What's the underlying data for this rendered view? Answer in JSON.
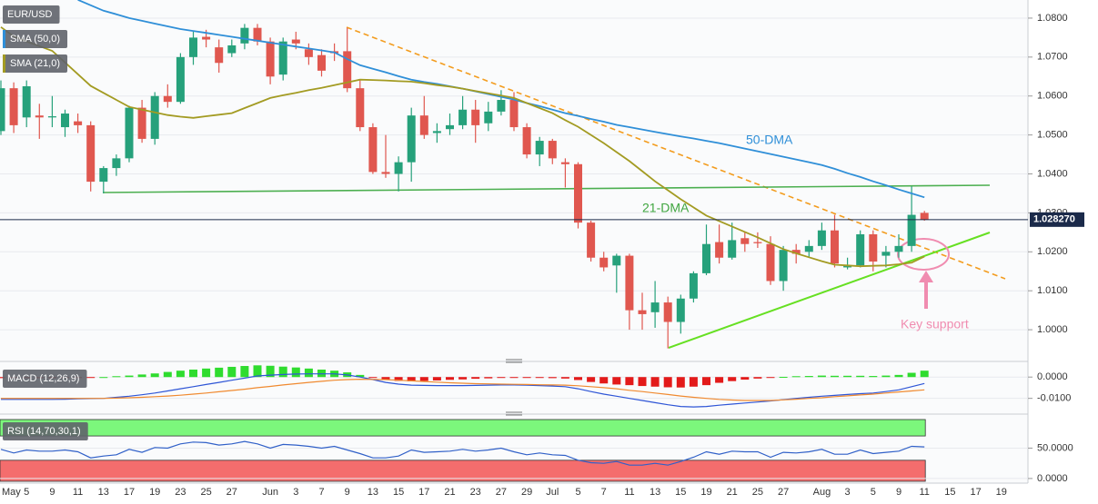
{
  "chart_data": [
    {
      "type": "candlestick",
      "title": "EUR/USD",
      "categories": [
        "May",
        null,
        "5",
        null,
        "9",
        null,
        "11",
        null,
        "13",
        null,
        "17",
        null,
        "19",
        null,
        "23",
        null,
        "25",
        null,
        "27",
        null,
        null,
        "Jun",
        null,
        "3",
        null,
        "7",
        null,
        "9",
        null,
        "13",
        null,
        "15",
        null,
        "17",
        null,
        "21",
        null,
        "23",
        null,
        "27",
        null,
        "29",
        null,
        "Jul",
        null,
        "5",
        null,
        "7",
        null,
        "11",
        null,
        "13",
        null,
        "15",
        null,
        "19",
        null,
        "21",
        null,
        "25",
        null,
        "27",
        null,
        null,
        "Aug",
        null,
        "3",
        null,
        "5",
        null,
        "9",
        null,
        "11",
        null,
        "15",
        null,
        "17",
        null,
        "19"
      ],
      "open": [
        1.051,
        1.062,
        1.0545,
        1.055,
        1.0545,
        1.052,
        1.0535,
        1.0525,
        1.038,
        1.0415,
        1.044,
        1.057,
        1.049,
        1.06,
        1.0585,
        1.07,
        1.0752,
        1.0725,
        1.071,
        1.0735,
        1.0775,
        1.074,
        1.0655,
        1.0745,
        1.072,
        1.0705,
        1.0715,
        1.0715,
        1.062,
        1.052,
        1.0405,
        1.04,
        1.043,
        1.055,
        1.0505,
        1.0515,
        1.0525,
        1.0565,
        1.053,
        1.056,
        1.059,
        1.052,
        1.045,
        1.0485,
        1.043,
        1.0425,
        1.0275,
        1.0185,
        1.0165,
        1.019,
        1.005,
        1.0045,
        1.007,
        1.002,
        1.008,
        1.0145,
        1.0225,
        1.0185,
        1.0235,
        1.0225,
        1.022,
        1.0125,
        1.0205,
        1.02,
        1.0215,
        1.0255,
        1.016,
        1.0165,
        1.0245,
        1.019,
        1.02,
        1.0215,
        1.03,
        null,
        null,
        null,
        null,
        null,
        null
      ],
      "high": [
        1.064,
        1.0635,
        1.064,
        1.058,
        1.06,
        1.0565,
        1.0555,
        1.0535,
        1.042,
        1.045,
        1.0575,
        1.059,
        1.061,
        1.063,
        1.071,
        1.0765,
        1.077,
        1.0745,
        1.0745,
        1.0785,
        1.0785,
        1.075,
        1.075,
        1.0765,
        1.0735,
        1.072,
        1.0735,
        1.0775,
        1.064,
        1.053,
        1.05,
        1.0445,
        1.057,
        1.06,
        1.053,
        1.0555,
        1.06,
        1.059,
        1.0585,
        1.0615,
        1.061,
        1.053,
        1.0495,
        1.049,
        1.044,
        1.043,
        1.028,
        1.02,
        1.0195,
        1.0195,
        1.0095,
        1.0125,
        1.0085,
        1.009,
        1.015,
        1.027,
        1.027,
        1.0275,
        1.025,
        1.025,
        1.024,
        1.0215,
        1.022,
        1.023,
        1.0275,
        1.0295,
        1.0185,
        1.0255,
        1.0255,
        1.0215,
        1.0245,
        1.0368,
        1.0305,
        null,
        null,
        null,
        null,
        null,
        null
      ],
      "low": [
        1.05,
        1.0505,
        1.052,
        1.049,
        1.052,
        1.0495,
        1.0505,
        1.0355,
        1.035,
        1.0395,
        1.043,
        1.048,
        1.0475,
        1.057,
        1.058,
        1.068,
        1.0725,
        1.066,
        1.07,
        1.072,
        1.073,
        1.063,
        1.064,
        1.072,
        1.068,
        1.065,
        1.069,
        1.061,
        1.051,
        1.04,
        1.039,
        1.0355,
        1.038,
        1.049,
        1.048,
        1.05,
        1.0515,
        1.048,
        1.051,
        1.055,
        1.051,
        1.044,
        1.042,
        1.0425,
        1.0365,
        1.026,
        1.0175,
        1.015,
        1.0095,
        1.0,
        1.0,
        1.0005,
        0.9952,
        0.999,
        1.007,
        1.014,
        1.017,
        1.018,
        1.02,
        1.021,
        1.0115,
        1.01,
        1.017,
        1.0185,
        1.0205,
        1.016,
        1.0155,
        1.016,
        1.015,
        1.016,
        1.0185,
        1.02,
        1.028,
        null,
        null,
        null,
        null,
        null,
        null
      ],
      "close": [
        1.062,
        1.0525,
        1.0625,
        1.0545,
        1.0548,
        1.0555,
        1.0525,
        1.038,
        1.0415,
        1.044,
        1.057,
        1.049,
        1.06,
        1.0585,
        1.07,
        1.075,
        1.0745,
        1.0685,
        1.073,
        1.0775,
        1.074,
        1.065,
        1.074,
        1.0735,
        1.07,
        1.0665,
        1.071,
        1.062,
        1.052,
        1.0405,
        1.04,
        1.043,
        1.055,
        1.05,
        1.051,
        1.0525,
        1.0565,
        1.0525,
        1.056,
        1.059,
        1.052,
        1.045,
        1.0485,
        1.044,
        1.0425,
        1.0275,
        1.0185,
        1.016,
        1.019,
        1.005,
        1.004,
        1.007,
        1.002,
        1.008,
        1.0145,
        1.022,
        1.0185,
        1.023,
        1.022,
        1.0222,
        1.0125,
        1.0205,
        1.0195,
        1.0215,
        1.0255,
        1.017,
        1.0165,
        1.0245,
        1.0175,
        1.02,
        1.0215,
        1.0295,
        1.02827,
        null,
        null,
        null,
        null,
        null,
        null
      ],
      "up_color": "#26a17b",
      "down_color": "#e0574f",
      "series": [
        {
          "name": "SMA (50,0)",
          "color": "#2f8fd8",
          "values": [
            null,
            null,
            null,
            null,
            null,
            null,
            1.0847,
            1.0833,
            1.0819,
            1.081,
            1.08,
            1.0793,
            1.0786,
            1.0779,
            1.0772,
            1.0767,
            1.0762,
            1.0757,
            1.0752,
            1.0747,
            1.0742,
            1.0737,
            1.0732,
            1.0727,
            1.0722,
            1.0717,
            1.0712,
            1.0695,
            1.0679,
            1.067,
            1.0661,
            1.0651,
            1.0642,
            1.0636,
            1.0631,
            1.0625,
            1.0619,
            1.0612,
            1.0605,
            1.0598,
            1.0591,
            1.0582,
            1.0574,
            1.0565,
            1.0556,
            1.0549,
            1.0541,
            1.0534,
            1.0526,
            1.052,
            1.0514,
            1.0508,
            1.0502,
            1.0496,
            1.0491,
            1.0485,
            1.0479,
            1.0472,
            1.0465,
            1.0458,
            1.0451,
            1.0444,
            1.0437,
            1.043,
            1.0423,
            1.0413,
            1.0402,
            1.0392,
            1.0381,
            1.0371,
            1.036,
            1.035,
            1.034,
            null,
            null,
            null,
            null,
            null,
            null
          ]
        },
        {
          "name": "SMA (21,0)",
          "color": "#a39b22",
          "values": [
            1.0777,
            1.0753,
            1.074,
            1.0728,
            1.0716,
            1.0686,
            1.0656,
            1.0626,
            1.0608,
            1.059,
            1.0572,
            1.0565,
            1.0558,
            1.0551,
            1.0547,
            1.0544,
            1.0548,
            1.0552,
            1.0556,
            1.0569,
            1.0582,
            1.0595,
            1.0602,
            1.0608,
            1.0615,
            1.0621,
            1.0628,
            1.0635,
            1.0642,
            1.0641,
            1.064,
            1.0638,
            1.0637,
            1.0633,
            1.0628,
            1.0624,
            1.0619,
            1.0613,
            1.0607,
            1.0601,
            1.0595,
            1.0582,
            1.0569,
            1.0556,
            1.0538,
            1.0521,
            1.05,
            1.0479,
            1.0456,
            1.0433,
            1.0407,
            1.0381,
            1.0358,
            1.0335,
            1.0314,
            1.0293,
            1.0279,
            1.0265,
            1.0251,
            1.0237,
            1.0222,
            1.0207,
            1.0196,
            1.0186,
            1.0176,
            1.0167,
            1.0165,
            1.0163,
            1.0164,
            1.0165,
            1.0168,
            1.0172,
            1.0188,
            null,
            null,
            null,
            null,
            null,
            null
          ]
        }
      ],
      "ylim": [
        0.99256,
        1.08465
      ],
      "yticks": [
        {
          "value": 1.0,
          "label": "1.0000"
        },
        {
          "value": 1.01,
          "label": "1.0100"
        },
        {
          "value": 1.02,
          "label": "1.0200"
        },
        {
          "value": 1.03,
          "label": "1.0300"
        },
        {
          "value": 1.04,
          "label": "1.0400"
        },
        {
          "value": 1.05,
          "label": "1.0500"
        },
        {
          "value": 1.06,
          "label": "1.0600"
        },
        {
          "value": 1.07,
          "label": "1.0700"
        },
        {
          "value": 1.08,
          "label": "1.0800"
        }
      ],
      "grid": true,
      "last_price": {
        "value": 1.02827,
        "label": "1.028270"
      },
      "annotations": [
        {
          "text": "50-DMA",
          "color": "#2f8fd8"
        },
        {
          "text": "21-DMA",
          "color": "#3fa53f"
        },
        {
          "text": "Key support",
          "color": "#f08cb0"
        }
      ]
    },
    {
      "type": "macd",
      "title": "MACD (12,26,9)",
      "histogram": {
        "up_color": "#2fdc2f",
        "down_color": "#e31a1a",
        "values": [
          -0.0005,
          -0.0005,
          -0.0005,
          -0.0005,
          -0.0005,
          -0.0004,
          -0.0002,
          -0.0001,
          0.0,
          0.0004,
          0.0007,
          0.0012,
          0.0017,
          0.0024,
          0.003,
          0.0035,
          0.004,
          0.0044,
          0.0048,
          0.0052,
          0.0055,
          0.0053,
          0.0049,
          0.0045,
          0.004,
          0.0035,
          0.003,
          0.0022,
          0.001,
          -0.0001,
          -0.0013,
          -0.0018,
          -0.002,
          -0.0018,
          -0.0016,
          -0.0013,
          -0.0011,
          -0.0008,
          -0.0006,
          -0.0004,
          -0.0003,
          -0.0003,
          -0.0004,
          -0.0005,
          -0.0007,
          -0.0014,
          -0.0023,
          -0.003,
          -0.0035,
          -0.0038,
          -0.0042,
          -0.0045,
          -0.0048,
          -0.0049,
          -0.0045,
          -0.0038,
          -0.0027,
          -0.0019,
          -0.0012,
          -0.0007,
          -0.0002,
          0.0001,
          0.0004,
          0.0005,
          0.0007,
          0.0006,
          0.0006,
          0.0006,
          0.0005,
          0.0007,
          0.001,
          0.002,
          0.003,
          null,
          null,
          null,
          null,
          null,
          null
        ]
      },
      "series": [
        {
          "color": "#2e55d6",
          "values": [
            -0.0105,
            -0.0105,
            -0.0105,
            -0.0105,
            -0.0105,
            -0.0104,
            -0.0102,
            -0.0101,
            -0.01,
            -0.0095,
            -0.009,
            -0.0083,
            -0.0075,
            -0.0065,
            -0.0055,
            -0.0045,
            -0.0035,
            -0.0025,
            -0.0015,
            -0.0005,
            0.0005,
            0.0009,
            0.0012,
            0.0014,
            0.0015,
            0.0015,
            0.0015,
            0.001,
            0.0,
            -0.0012,
            -0.0025,
            -0.0033,
            -0.0038,
            -0.0039,
            -0.004,
            -0.004,
            -0.004,
            -0.0039,
            -0.0038,
            -0.0037,
            -0.0037,
            -0.0038,
            -0.004,
            -0.0042,
            -0.0045,
            -0.0055,
            -0.0068,
            -0.008,
            -0.009,
            -0.01,
            -0.011,
            -0.012,
            -0.013,
            -0.0138,
            -0.014,
            -0.0138,
            -0.0132,
            -0.0127,
            -0.0122,
            -0.0117,
            -0.0112,
            -0.0106,
            -0.01,
            -0.0095,
            -0.009,
            -0.0086,
            -0.0082,
            -0.0078,
            -0.0075,
            -0.0068,
            -0.006,
            -0.0045,
            -0.003,
            null,
            null,
            null,
            null,
            null,
            null
          ]
        },
        {
          "color": "#f08a30",
          "values": [
            -0.01,
            -0.01,
            -0.01,
            -0.01,
            -0.01,
            -0.01,
            -0.01,
            -0.01,
            -0.01,
            -0.0099,
            -0.0097,
            -0.0095,
            -0.0092,
            -0.0089,
            -0.0085,
            -0.008,
            -0.0075,
            -0.0069,
            -0.0063,
            -0.0057,
            -0.005,
            -0.0044,
            -0.0037,
            -0.0031,
            -0.0025,
            -0.002,
            -0.0015,
            -0.0012,
            -0.001,
            -0.0011,
            -0.0012,
            -0.0015,
            -0.0018,
            -0.0021,
            -0.0024,
            -0.0027,
            -0.0029,
            -0.0031,
            -0.0032,
            -0.0033,
            -0.0034,
            -0.0035,
            -0.0036,
            -0.0037,
            -0.0038,
            -0.0041,
            -0.0045,
            -0.005,
            -0.0055,
            -0.0062,
            -0.0068,
            -0.0075,
            -0.0082,
            -0.0089,
            -0.0095,
            -0.01,
            -0.0105,
            -0.0108,
            -0.011,
            -0.011,
            -0.011,
            -0.0107,
            -0.0104,
            -0.01,
            -0.0097,
            -0.0092,
            -0.0088,
            -0.0084,
            -0.008,
            -0.0075,
            -0.007,
            -0.0065,
            -0.006,
            null,
            null,
            null,
            null,
            null,
            null
          ]
        }
      ],
      "ylim": [
        -0.01696,
        0.00478
      ],
      "yticks": [
        {
          "value": -0.01,
          "label": "-0.0100"
        },
        {
          "value": 0,
          "label": "0.0000"
        }
      ]
    },
    {
      "type": "rsi",
      "title": "RSI (14,70,30,1)",
      "series": [
        {
          "color": "#3060c8",
          "values": [
            48,
            42,
            47,
            45,
            45,
            47,
            44,
            34,
            37,
            39,
            48,
            43,
            51,
            50,
            57,
            60,
            59,
            55,
            57,
            61,
            57,
            50,
            56,
            55,
            53,
            50,
            53,
            47,
            41,
            34,
            34,
            37,
            47,
            43,
            44,
            45,
            48,
            45,
            47,
            50,
            44,
            39,
            42,
            39,
            38,
            30,
            26,
            25,
            28,
            22,
            22,
            25,
            22,
            28,
            35,
            44,
            40,
            45,
            44,
            44,
            35,
            43,
            42,
            44,
            48,
            40,
            40,
            47,
            41,
            43,
            45,
            53,
            52,
            null,
            null,
            null,
            null,
            null,
            null
          ]
        }
      ],
      "bands": {
        "upper": 70,
        "lower": 30,
        "upper_color": "#7cf77c",
        "lower_color": "#f46d6d"
      },
      "ylim": [
        -7.6,
        101.5
      ],
      "yticks": [
        {
          "value": 0,
          "label": "0.0000"
        },
        {
          "value": 50,
          "label": "50.0000"
        }
      ]
    }
  ]
}
